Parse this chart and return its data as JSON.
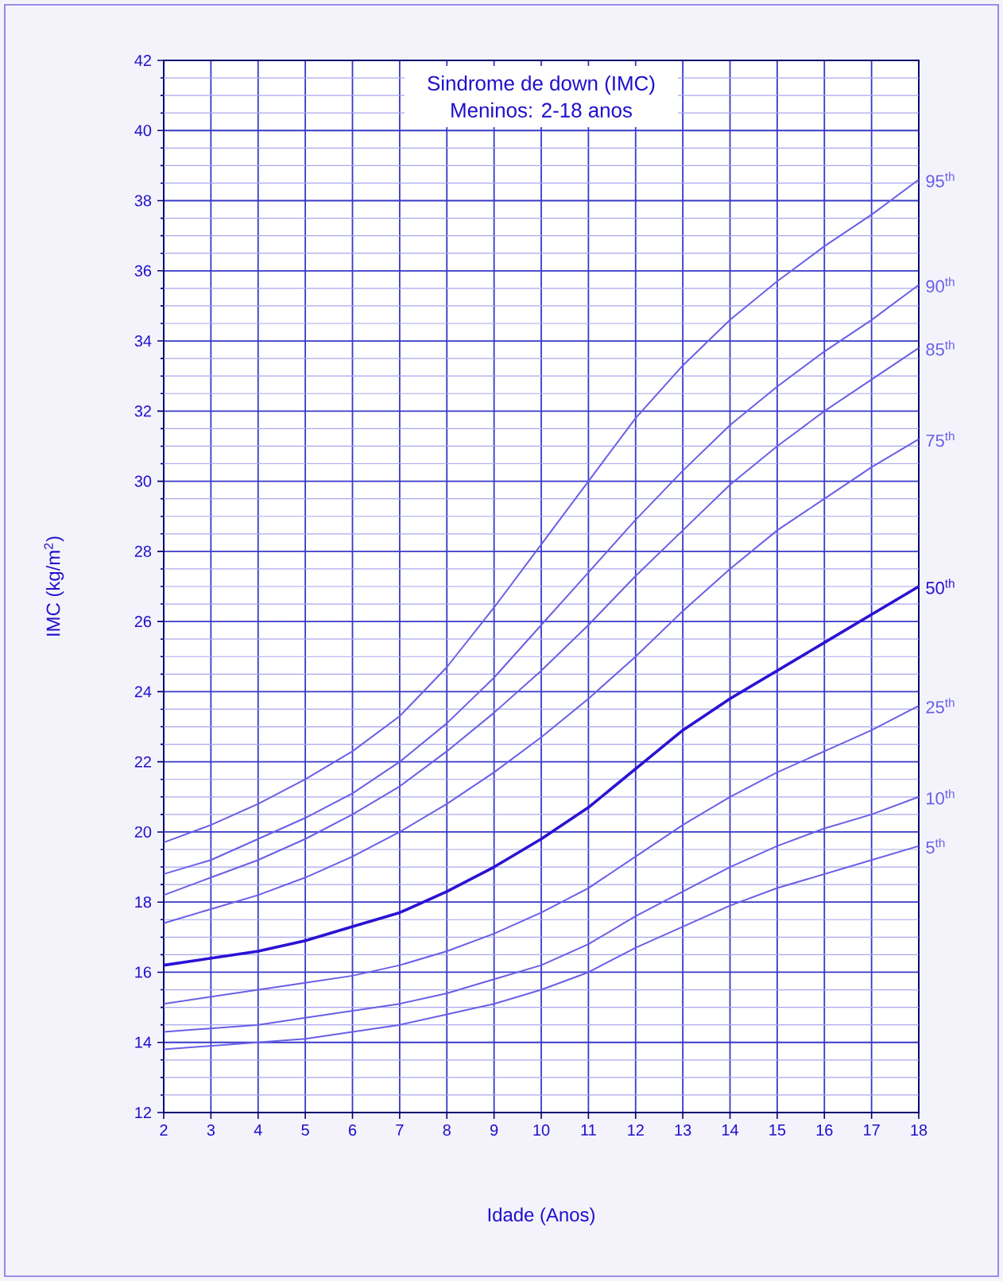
{
  "chart_data": {
    "type": "line",
    "title": "Sindrome de down (IMC)",
    "subtitle": "Meninos: 2-18 anos",
    "xlabel": "Idade (Anos)",
    "ylabel": "IMC (kg/m$^{2}$)",
    "x": [
      2,
      3,
      4,
      5,
      6,
      7,
      8,
      9,
      10,
      11,
      12,
      13,
      14,
      15,
      16,
      17,
      18
    ],
    "xlim": [
      2,
      18
    ],
    "xticks": [
      2,
      3,
      4,
      5,
      6,
      7,
      8,
      9,
      10,
      11,
      12,
      13,
      14,
      15,
      16,
      17,
      18
    ],
    "ylim": [
      12,
      42
    ],
    "yticks": [
      12,
      {
        "value": 12.5,
        "label": null
      },
      {
        "value": 13,
        "label": null
      },
      {
        "value": 13.5,
        "label": null
      },
      14,
      {
        "value": 14.5,
        "label": null
      },
      {
        "value": 15,
        "label": null
      },
      {
        "value": 15.5,
        "label": null
      },
      16,
      {
        "value": 16.5,
        "label": null
      },
      {
        "value": 17,
        "label": null
      },
      {
        "value": 17.5,
        "label": null
      },
      18,
      {
        "value": 18.5,
        "label": null
      },
      {
        "value": 19,
        "label": null
      },
      {
        "value": 19.5,
        "label": null
      },
      20,
      {
        "value": 20.5,
        "label": null
      },
      {
        "value": 21,
        "label": null
      },
      {
        "value": 21.5,
        "label": null
      },
      22,
      {
        "value": 22.5,
        "label": null
      },
      {
        "value": 23,
        "label": null
      },
      {
        "value": 23.5,
        "label": null
      },
      24,
      {
        "value": 24.5,
        "label": null
      },
      {
        "value": 25,
        "label": null
      },
      {
        "value": 25.5,
        "label": null
      },
      26,
      {
        "value": 26.5,
        "label": null
      },
      {
        "value": 27,
        "label": null
      },
      {
        "value": 27.5,
        "label": null
      },
      28,
      {
        "value": 28.5,
        "label": null
      },
      {
        "value": 29,
        "label": null
      },
      {
        "value": 29.5,
        "label": null
      },
      30,
      {
        "value": 30.5,
        "label": null
      },
      {
        "value": 31,
        "label": null
      },
      {
        "value": 31.5,
        "label": null
      },
      32,
      {
        "value": 32.5,
        "label": null
      },
      {
        "value": 33,
        "label": null
      },
      {
        "value": 33.5,
        "label": null
      },
      34,
      {
        "value": 34.5,
        "label": null
      },
      {
        "value": 35,
        "label": null
      },
      {
        "value": 35.5,
        "label": null
      },
      36,
      {
        "value": 36.5,
        "label": null
      },
      {
        "value": 37,
        "label": null
      },
      {
        "value": 37.5,
        "label": null
      },
      38,
      {
        "value": 38.5,
        "label": null
      },
      {
        "value": 39,
        "label": null
      },
      {
        "value": 39.5,
        "label": null
      },
      40,
      {
        "value": 40.5,
        "label": null
      },
      {
        "value": 41,
        "label": null
      },
      {
        "value": 41.5,
        "label": null
      },
      42
    ],
    "grid": true,
    "legend": "right",
    "series": [
      {
        "name": "95$^{th}$",
        "color": "#6a5fe6",
        "values": [
          19.7,
          20.2,
          20.8,
          21.5,
          22.3,
          23.3,
          24.7,
          26.4,
          28.2,
          30.0,
          31.8,
          33.3,
          34.6,
          35.7,
          36.7,
          37.6,
          38.6
        ]
      },
      {
        "name": "90$^{th}$",
        "color": "#6a5fe6",
        "values": [
          18.8,
          19.2,
          19.8,
          20.4,
          21.1,
          22.0,
          23.1,
          24.4,
          25.9,
          27.4,
          28.9,
          30.3,
          31.6,
          32.7,
          33.7,
          34.6,
          35.6
        ]
      },
      {
        "name": "85$^{th}$",
        "color": "#6a5fe6",
        "values": [
          18.2,
          18.7,
          19.2,
          19.8,
          20.5,
          21.3,
          22.3,
          23.4,
          24.6,
          25.9,
          27.3,
          28.6,
          29.9,
          31.0,
          32.0,
          32.9,
          33.8
        ]
      },
      {
        "name": "75$^{th}$",
        "color": "#6a5fe6",
        "values": [
          17.4,
          17.8,
          18.2,
          18.7,
          19.3,
          20.0,
          20.8,
          21.7,
          22.7,
          23.8,
          25.0,
          26.3,
          27.5,
          28.6,
          29.5,
          30.4,
          31.2
        ]
      },
      {
        "name": "50$^{th}$",
        "color": "#2a12d4",
        "values": [
          16.2,
          16.4,
          16.6,
          16.9,
          17.3,
          17.7,
          18.3,
          19.0,
          19.8,
          20.7,
          21.8,
          22.9,
          23.8,
          24.6,
          25.4,
          26.2,
          27.0
        ]
      },
      {
        "name": "25$^{th}$",
        "color": "#6a5fe6",
        "values": [
          15.1,
          15.3,
          15.5,
          15.7,
          15.9,
          16.2,
          16.6,
          17.1,
          17.7,
          18.4,
          19.3,
          20.2,
          21.0,
          21.7,
          22.3,
          22.9,
          23.6
        ]
      },
      {
        "name": "10$^{th}$",
        "color": "#6a5fe6",
        "values": [
          14.3,
          14.4,
          14.5,
          14.7,
          14.9,
          15.1,
          15.4,
          15.8,
          16.2,
          16.8,
          17.6,
          18.3,
          19.0,
          19.6,
          20.1,
          20.5,
          21.0
        ]
      },
      {
        "name": "5$^{th}$",
        "color": "#6a5fe6",
        "values": [
          13.8,
          13.9,
          14.0,
          14.1,
          14.3,
          14.5,
          14.8,
          15.1,
          15.5,
          16.0,
          16.7,
          17.3,
          17.9,
          18.4,
          18.8,
          19.2,
          19.6
        ]
      }
    ]
  }
}
